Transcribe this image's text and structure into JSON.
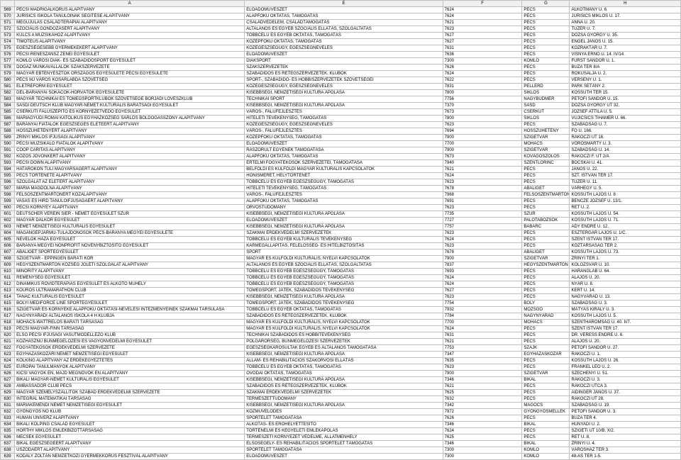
{
  "columns": [
    "",
    "A",
    "E",
    "F",
    "G",
    "H"
  ],
  "startRow": 569,
  "rows": [
    [
      "PÉCSI MADRIGÁLKÓRUS ALAPÍTVÁNY",
      "ELŐADÓMŰVÉSZET",
      "7624",
      "PÉCS",
      "ALKOTMÁNY U. 6."
    ],
    [
      "JURISICS ISKOLA TANULÓINAK SEGÍTÉSE ALAPÍTVÁNY",
      "ALAPFOKÚ OKTATÁS, TÁMOGATÁS",
      "7624",
      "PÉCS",
      "JURISICS MIKLÓS U. 17."
    ],
    [
      "MEGÚJULÁS CSALÁDTERÁPIÁI ALAPÍTVÁNY",
      "CSALÁDVÉDELEM, CSALÁDTÁMOGATÁS",
      "7621",
      "PÉCS",
      "ANNA U. 20."
    ],
    [
      "SZOCIÁLIS GONDOZÁSÉRT ALAPÍTVÁNY",
      "ÁLTALÁNOS ÉS EGYÉB SZOCIÁLIS ELLÁTÁS, SZOLGÁLTATÁS",
      "7623",
      "PÉCS",
      "TÜZÉR U. 7."
    ],
    [
      "KULCS A MUZSIKÁHOZ ALAPÍTVÁNY",
      "TÖBBCÉLÚ ÉS EGYÉB OKTATÁS, TÁMOGATÁS",
      "7627",
      "PÉCS",
      "DÓZSA GYÖRGY U. 35."
    ],
    [
      "TIMÓTEUS ALAPÍTVÁNY",
      "KÖZÉPFOKÚ OKTATÁS, TÁMOGATÁS",
      "7627",
      "PÉCS",
      "ENGEL JÁNOS U. 15."
    ],
    [
      "EGÉSZSÉGESEBB GYERMEKEKÉRT ALAPÍTVÁNY",
      "KÖZEGÉSZSÉGÜGY, EGÉSZSÉGNEVELÉS",
      "7631",
      "PÉCS",
      "KŐZRAKTÁR U. 7."
    ],
    [
      "PÉCSI RENESZÁNSZ ZENEI EGYESÜLET",
      "ELŐADÓMŰVÉSZET",
      "7636",
      "PÉCS",
      "VISNYA ERNŐ U. 14. IV/14."
    ],
    [
      "KOMLÓ VÁROSI DIÁK- ÉS SZABADIDŐSPORT EGYESÜLET",
      "DIÁKSPORT",
      "7300",
      "KOMLÓ",
      "FÜRST SÁNDOR U. 1."
    ],
    [
      "DOGÁZ MUNKAVÁLLALÓK SZAKSZERVEZETE",
      "SZAKSZERVEZETEK",
      "7626",
      "PÉCS",
      "BÚZA TÉR 8/A"
    ],
    [
      "MAGYAR EBTENYÉSZTŐK ORSZÁGOS EGYESÜLETE PÉCSI EGYESÜLETE",
      "SZABADIDŐS ÉS RÉTEGSZERVEZETEK, KLUBOK",
      "7624",
      "PÉCS",
      "RÓKUSALJA U. 2."
    ],
    [
      "PÉCS MJ VÁROS KOSÁRLABDA SZÖVETSÉG",
      "SPORT-, SZABADIDŐ- ÉS HOBBISZERVEZETEK SZÖVETSÉGEI",
      "7622",
      "PÉCS",
      "VERSENY U. 1."
    ],
    [
      "ÉLETREFORM EGYESÜLET",
      "KÖZEGÉSZSÉGÜGY, EGÉSZSÉGNEVELÉS",
      "7831",
      "PELLÉRD",
      "PARK SÉTÁNY 2."
    ],
    [
      "DÉL-BARANYAI SOKÁCOK-HORVÁTOK EGYESÜLETE",
      "KISEBBSÉGI, NEMZETISÉGI KULTÚRA ÁPOLÁSA",
      "7800",
      "SIKLÓS",
      "KOSSUTH TÉR 15."
    ],
    [
      "MAGYAR TECHNIKAI ÉS TÖMEGSPORTKLUBOK SZÖVETSÉGE BORJÁDI LÖVÉSZKLUB",
      "TECHNIKAI SPORT",
      "7756",
      "NAGYBUDMÉR",
      "PETŐFI SÁNDOR U. 15."
    ],
    [
      "SÁSDI DEUTSCH KLUB MAGYAR-NÉMET KULTURÁLIS BARÁTSÁGI EGYESÜLET",
      "KISEBBSÉGI, NEMZETISÉGI KULTÚRA ÁPOLÁSA",
      "7370",
      "SÁSD",
      "DÓZSA GYÖRGY ÚT 32."
    ],
    [
      "CSERKÚTI FALUSZÉPÍTŐ ÉS KÖRNYEZETVÉDŐ EGYESÜLET",
      "VÁROS-, FALUFEJLESZTÉS",
      "7673",
      "CSERKÚT",
      "JÓZSEF ATTILA U. 5."
    ],
    [
      "MÁRIAGYŰDI RÓMAI KATOLIKUS EGYHÁZKÖZSÉG SARLÓS BOLDOGASSZONY ALAPÍTVÁNY",
      "HITÉLETI TEVÉKENYSÉG, TÁMOGATÁS",
      "7800",
      "SIKLÓS",
      "VUJICSICS TIHAMÉR U. 66."
    ],
    [
      "BARANYAI FIATALOK EGÉSZSÉGES ÉLETÉÉRT ALAPÍTVÁNY",
      "KÖZEGÉSZSÉGÜGY, EGÉSZSÉGNEVELÉS",
      "7623",
      "PÉCS",
      "SZABADSÁG U. 7."
    ],
    [
      "HOSSZÚHETÉNYÉRT ALAPÍTVÁNY",
      "VÁROS-, FALUFEJLESZTÉS",
      "7694",
      "HOSSZÚHETÉNY",
      "FŐ U. 166."
    ],
    [
      "ZRÍNYI MIKLÓS IFJÚSÁGI ALAPÍTVÁNY",
      "KÖZÉPFOKÚ OKTATÁS, TÁMOGATÁS",
      "7900",
      "SZIGETVÁR",
      "RÁKÓCZI ÚT 18."
    ],
    [
      "PÉCSI MUZSIKÁLÓ FIATALOK ALAPÍTVÁNY",
      "ELŐADÓMŰVÉSZET",
      "7700",
      "MOHÁCS",
      "VÖRÖSMARTY U. 3."
    ],
    [
      "COOP CARITAS ALAPÍTVÁNY",
      "RÁSZORULT EGYÉNEK TÁMOGATÁSA",
      "7900",
      "SZIGETVÁR",
      "SZABADSÁG U. 14."
    ],
    [
      "KÖZÖS JÖVŐNKÉRT ALAPÍTVÁNY",
      "ALAPFOKÚ OKTATÁS, TÁMOGATÁS",
      "7673",
      "KŐVÁGÓSZŐLŐS",
      "RÁKÓCZI F. ÚT 2/A"
    ],
    [
      "PÉCSI DOWN ALAPÍTVÁNY",
      "ÉRTELMI FOGYATÉKOSOK SZERVEZETEI, TÁMOGATÁSA",
      "7940",
      "SZENTLŐRINC",
      "BOCSKAI U. 41."
    ],
    [
      "HATÁROKON TÚLI MAGYARSÁGÉRT ALAPÍTVÁNY",
      "BELFÖLDI ÉS KÜLFÖLDI MAGYAR KULTURÁLIS KAPCSOLATOK",
      "7621",
      "PÉCS",
      "JÁNOS U. 22."
    ],
    [
      "PÉCS TÖRTÉNETE ALAPÍTVÁNY",
      "HONISMERET, HELYTÖRTÉNET",
      "7624",
      "PÉCS",
      "SZT. ISTVÁN TÉR 17."
    ],
    [
      "SZOLGÁLAT AZ ÉLETÉRT ALAPÍTVÁNY",
      "TÖBBCÉLÚ ÉS EGYÉB EGÉSZSÉGÜGY, TÁMOGATÁS",
      "7623",
      "PÉCS",
      "TÜZÉR U. 11."
    ],
    [
      "MÁRIA MAGDOLNA ALAPÍTVÁNY",
      "HITÉLETI TEVÉKENYSÉG, TÁMOGATÁS",
      "7678",
      "ABALIGET",
      "VÁRHEGY U. 5."
    ],
    [
      "FELSŐSZENTMÁRTONÉRT KÖZALAPÍTVÁNY",
      "VÁROS-, FALUFEJLESZTÉS",
      "7968",
      "FELSŐSZENTMÁRTON",
      "KOSSUTH LAJOS U. 8"
    ],
    [
      "VASAS ÉS HIRD TANULÓIFJÚSÁGÁÉRT ALAPÍTVÁNY",
      "ALAPFOKÚ OKTATÁS, TÁMOGATÁS",
      "7691",
      "PÉCS",
      "BENCZE JÓZSEF U. 13/1."
    ],
    [
      "PÉCSI KÖRNYEY ALAPÍTVÁNY",
      "ORVOSTUDOMÁNY",
      "7623",
      "PÉCS",
      "RÉT U. 2."
    ],
    [
      "DEUTSCHER VEREIN SIER - NÉMET EGYESÜLET SZŰR",
      "KISEBBSÉGI, NEMZETISÉGI KULTÚRA ÁPOLÁSA",
      "7735",
      "SZŰR",
      "KOSSUTH LAJOS U. 54."
    ],
    [
      "MAGYAR DALKÖR EGYESÜLET",
      "ELŐADÓMŰVÉSZET",
      "7727",
      "PALOTABOZSOK",
      "KOSSUTH LAJOS U. 71."
    ],
    [
      "NÉMET NEMZETISÉGI KULTURÁLIS EGYESÜLET",
      "KISEBBSÉGI, NEMZETISÉGI KULTÚRA ÁPOLÁSA",
      "7757",
      "BABARC",
      "ADY ENDRE U. 12."
    ],
    [
      "MAGÁNGÉPJÁRMŰ-TULAJDONOSOK PÉCS-BARANYA MEGYEI EGYESÜLETE",
      "SZAKMAI ÉRDEKVÉDELMI SZERVEZETEK",
      "7623",
      "PÉCS",
      "ESZTERGÁR LAJOS U. 1/C."
    ],
    [
      "NEVELŐK HÁZA EGYESÜLET",
      "TÖBBCÉLÚ ÉS EGYÉB KULTURÁLIS TEVÉKENYSÉG",
      "7624",
      "PÉCS",
      "SZENT ISTVÁN TÉR 17."
    ],
    [
      "BARANYA MEGYEI NONPROFIT NÖVÉNYBIZTOSÍTÓ EGYESÜLET",
      "KÁRMEGÁLLAPÍTÁS, FELELŐSSÉG- ÉS HITELBIZTOSÍTÁS",
      "7623",
      "PÉCS",
      "KÖZTÁRSASÁG TÉR 2."
    ],
    [
      "ABALIGET SPORTEGYESÜLET",
      "SPORT",
      "7678",
      "ABALIGET",
      "KOSSUTH LAJOS U. 73."
    ],
    [
      "SZIGETVÁR - EPPINGEN BARÁTI KÖR",
      "MAGYAR ÉS KÜLFÖLDI KULTURÁLIS, NYELVI KAPCSOLATOK",
      "7900",
      "SZIGETVÁR",
      "ZRÍNYI TÉR 1."
    ],
    [
      "HEGYSZENTMÁRTON KÖZSÉG JÓLÉTI SZOLGÁLAT ALAPÍTVÁNY",
      "ÁLTALÁNOS ÉS EGYÉB SZOCIÁLIS ELLÁTÁS, SZOLGÁLTATÁS",
      "7837",
      "HEGYSZENTMÁRTON",
      "KOLOZSVÁR U. 10."
    ],
    [
      "MINORITY ALAPÍTVÁNY",
      "TÖBBCÉLÚ ÉS EGYÉB EGÉSZSÉGÜGY, TÁMOGATÁS",
      "7693",
      "PÉCS",
      "HARANGLÁB U. 64."
    ],
    [
      "REMÉNYSÉG EGYESÜLET",
      "TÖBBCÉLÚ ÉS EGYÉB EGÉSZSÉGÜGY, TÁMOGATÁS",
      "7624",
      "PÉCS",
      "ALAJOS U. 20."
    ],
    [
      "DINAMIKUS RÖVIDTERÁPIÁS EGYESÜLET ÉS ALKOTÓ MŰHELY",
      "TÖBBCÉLÚ ÉS EGYÉB EGÉSZSÉGÜGY, TÁMOGATÁS",
      "7624",
      "PÉCS",
      "NYÁR U. 8."
    ],
    [
      "KOUROS ULTRAMARATHON CLUB",
      "TÖMEGSPORT, JÁTÉK, SZABADIDŐS TEVÉKENYSÉG",
      "7627",
      "PÉCS",
      "KERT U. 14."
    ],
    [
      "TANAC KULTURÁLIS EGYESÜLET",
      "KISEBBSÉGI, NEMZETISÉGI KULTÚRA ÁPOLÁSA",
      "7623",
      "PÉCS",
      "NAGYVÁRAD U. 13."
    ],
    [
      "BÓLYI MEDIFORCE LINE SPORTEGYESÜLET",
      "TÖMEGSPORT, JÁTÉK, SZABADIDŐS TEVÉKENYSÉG",
      "7754",
      "BÓLY",
      "SZABADSÁG U. 3."
    ],
    [
      "SZIGETVÁR ÉS KÖRNYÉKE ALAPFOKÚ OKTATÁSI-NEVELÉSI INTÉZMÉNYEINEK SZAKMAI TÁRSULÁSA",
      "TÖBBCÉLÚ ÉS EGYÉB OKTATÁS, TÁMOGATÁS",
      "7932",
      "MOZSGÓ",
      "MÁTYÁS KIRÁLY U. 3."
    ],
    [
      "NAGYNYÁRÁDI ÁLTALÁNOS ISKOLA 4 H KLUBJA",
      "SZABADIDŐS ÉS RÉTEGSZERVEZETEK, KLUBOK",
      "7784",
      "NAGYNYÁRÁD",
      "KOSSUTH LAJOS U. 5."
    ],
    [
      "MOHÁCS-WATTRELOS BARÁTI TÁRSASÁG",
      "MAGYAR ÉS KÜLFÖLDI KULTURÁLIS, NYELVI KAPCSOLATOK",
      "7700",
      "MOHÁCS",
      "SZENTHÁROMSÁG U. 40. II/7."
    ],
    [
      "PÉCSI MAGYAR-FINN TÁRSASÁG",
      "MAGYAR ÉS KÜLFÖLDI KULTURÁLIS, NYELVI KAPCSOLATOK",
      "7624",
      "PÉCS",
      "SZENT ISTVÁN TÉR 17."
    ],
    [
      "ELSŐ PÉCSI IFJÚSÁGI VASÚTMODELLEZŐ KLUB",
      "TECHNIKAI SZABADIDŐS ÉS HOBBITEVÉKENYSÉG",
      "7631",
      "PÉCS",
      "DR. VERESS ENDRE U. 6."
    ],
    [
      "KÖZHASZNÚ BŰNMEGELŐZÉSI ÉS VAGYONVÉDELMI EGYESÜLET",
      "POLGÁRŐRSÉG, BŰNMEGELŐZÉSI SZERVEZETEK",
      "7621",
      "PÉCS",
      "ALAJOS U. 20."
    ],
    [
      "FOGYATÉKOSOK ÉRDEKVÉDELMI SZERVEZETE",
      "EGÉSZSÉGKÁROSULTAK EGYÉB ÉS ÁLTALÁNOS TÁMOGATÁSA",
      "7753",
      "SZAJK",
      "PETŐFI SÁNDOR U. 27."
    ],
    [
      "EGYHÁZASKOZÁRI NÉMET NEMZETISÉGI EGYESÜLET",
      "KISEBBSÉGI, NEMZETISÉGI KULTÚRA ÁPOLÁSA",
      "7347",
      "EGYHÁZASKOZÁR",
      "RÁKÓCZI U. 1."
    ],
    [
      "KÖLKING ALAPÍTVÁNY AZ ÉRDEKEGYEZTETÉS",
      "ÁLLAM- ÉS REHABILITÁCIÓS SZAKORVOSI ELLÁTÁS",
      "7635",
      "PÉCS",
      "KOSSUTH LAJOS U. 26."
    ],
    [
      "EURÓPAI TANULMÁNYOK ALAPÍTVÁNY",
      "TÖBBCÉLÚ ÉS EGYÉB OKTATÁS, TÁMOGATÁS",
      "7623",
      "PÉCS",
      "FRANKEL LEÓ U. 2."
    ],
    [
      "KICSI VAGYOK ÉN, MAJD MEGNÖVÖK ÉN ALAPÍTVÁNY",
      "ÓVODAI OKTATÁS, TÁMOGATÁS",
      "7900",
      "SZIGETVÁR",
      "SZÉCHENYI U. 51."
    ],
    [
      "BIKALI MAGYAR-NÉMET KULTURÁLIS EGYESÜLET",
      "KISEBBSÉGI, NEMZETISÉGI KULTÚRA ÁPOLÁSA",
      "7346",
      "BIKAL",
      "RÁKÓCZI U. 3."
    ],
    [
      "AMBASSADOR CLUB PÉCS",
      "SZABADIDŐS ÉS RÉTEGSZERVEZETEK, KLUBOK",
      "7621",
      "PÉCS",
      "RÁKÓCZI UTCA 3."
    ],
    [
      "MAGYAR SZEMÉLYSZÁLLÍTÓK SZABAD ÉRDEKVÉDELMI SZERVEZETE",
      "SZAKMAI ÉRDEKVÉDELMI SZERVEZETEK",
      "7625",
      "PÉCS",
      "AIDINGER JÁNOS U. 37."
    ],
    [
      "INTEGRÁL MATEMATIKAI TÁRSASÁG",
      "TERMÉSZETTUDOMÁNY",
      "7632",
      "PÉCS",
      "RÁKÓCZI ÚT 28."
    ],
    [
      "MÁRIAKÉMÉNDI NÉMET NEMZETISÉGI EGYESÜLET",
      "KISEBBSÉGI, NEMZETISÉGI KULTÚRA ÁPOLÁSA",
      "7342",
      "MÁGOCS",
      "SZABADSÁG U. 19."
    ],
    [
      "GYÖNGYÖS NŐ KLUB",
      "KÖZMŰVELŐDÉS",
      "7972",
      "GYÖNGYÖSMELLÉK",
      "PETŐFI SÁNDOR U. 3."
    ],
    [
      "HUMAN UNIVERZ ALAPÍTVÁNY",
      "SPORTÉLET TÁMOGATÁSA",
      "7626",
      "PÉCS",
      "BÚZA TÉR 4."
    ],
    [
      "BIKALI KOLPING CSALÁD EGYESÜLET",
      "ALKOTÁS- ÉS ERŐHELYETTESÍTŐ",
      "7346",
      "BIKAL",
      "HUNYADI U. 2."
    ],
    [
      "HORTHY MIKLÓS EMLÉKBIZÓTTÁRSASÁG",
      "TÖRTÉNELMI ÉS KEGYELETI EMLÉKÁPOLÁS",
      "7624",
      "PÉCS",
      "SZIGETI ÚT 10/B. X/2."
    ],
    [
      "MECSEK EGYESÜLET",
      "TERMÉSZETI KÖRNYEZET VÉDELME, ÁLLATMENHELY",
      "7625",
      "PÉCS",
      "RÉT U. 8."
    ],
    [
      "BIKAL EGÉSZSÉGÉÉRT ALAPÍTVÁNY",
      "ELSŐSEGÉLY- ÉS REHABILITÁCIÓS SPORTÉLET TÁMOGATÁS",
      "7346",
      "BIKAL",
      "ZRÍNYI U. 4."
    ],
    [
      "ÚSZODAÉRT ALAPÍTVÁNY",
      "SPORTÉLET TÁMOGATÁSA",
      "7300",
      "KOMLÓ",
      "VÁROSHÁZ TÉR 3."
    ],
    [
      "KODÁLY ZOLTÁN NEMZETKÖZI GYERMEKKÓRUS FESZTIVÁL ALAPÍTVÁNY",
      "ELŐADÓMŰVÉSZET",
      "7300",
      "KOMLÓ",
      "48-AS TÉR 1-5."
    ]
  ]
}
